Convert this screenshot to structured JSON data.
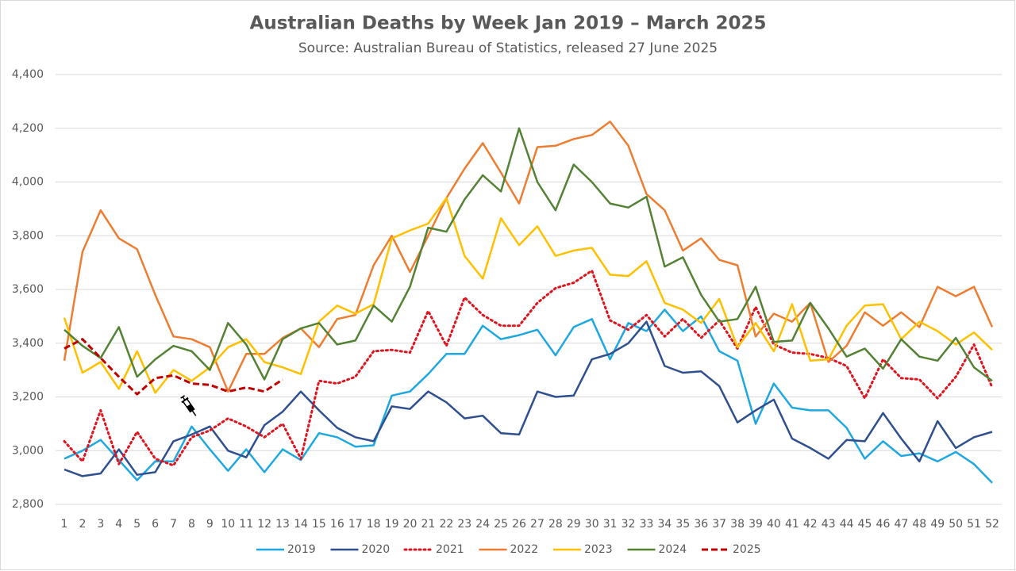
{
  "chart_data": {
    "type": "line",
    "title": "Australian Deaths by Week Jan 2019 – March 2025",
    "subtitle": "Source: Australian Bureau of Statistics, released 27 June 2025",
    "categories": [
      1,
      2,
      3,
      4,
      5,
      6,
      7,
      8,
      9,
      10,
      11,
      12,
      13,
      14,
      15,
      16,
      17,
      18,
      19,
      20,
      21,
      22,
      23,
      24,
      25,
      26,
      27,
      28,
      29,
      30,
      31,
      32,
      33,
      34,
      35,
      36,
      37,
      38,
      39,
      40,
      41,
      42,
      43,
      44,
      45,
      46,
      47,
      48,
      49,
      50,
      51,
      52
    ],
    "ylim": [
      2800,
      4400
    ],
    "yticks": [
      {
        "value": 2800,
        "label": "2,800"
      },
      {
        "value": 3000,
        "label": "3,000"
      },
      {
        "value": 3200,
        "label": "3,200"
      },
      {
        "value": 3400,
        "label": "3,400"
      },
      {
        "value": 3600,
        "label": "3,600"
      },
      {
        "value": 3800,
        "label": "3,800"
      },
      {
        "value": 4000,
        "label": "4,000"
      },
      {
        "value": 4200,
        "label": "4,200"
      },
      {
        "value": 4400,
        "label": "4,400"
      }
    ],
    "grid": true,
    "legend": "bottom",
    "series": [
      {
        "name": "2019",
        "color": "#1fa8e0",
        "style": "solid",
        "values": [
          2970,
          3000,
          3040,
          2965,
          2890,
          2960,
          2960,
          3090,
          3005,
          2925,
          3005,
          2920,
          3005,
          2965,
          3065,
          3050,
          3015,
          3020,
          3205,
          3220,
          3285,
          3360,
          3360,
          3465,
          3415,
          3430,
          3450,
          3355,
          3460,
          3490,
          3340,
          3475,
          3445,
          3525,
          3445,
          3500,
          3370,
          3335,
          3100,
          3250,
          3160,
          3150,
          3150,
          3085,
          2970,
          3035,
          2980,
          2990,
          2960,
          2995,
          2950,
          2880
        ]
      },
      {
        "name": "2020",
        "color": "#2f4f8f",
        "style": "solid",
        "values": [
          2930,
          2905,
          2915,
          3005,
          2910,
          2920,
          3035,
          3060,
          3090,
          3000,
          2975,
          3095,
          3145,
          3220,
          3150,
          3085,
          3050,
          3035,
          3165,
          3155,
          3220,
          3180,
          3120,
          3130,
          3065,
          3060,
          3220,
          3200,
          3205,
          3340,
          3360,
          3400,
          3480,
          3315,
          3290,
          3295,
          3240,
          3105,
          3150,
          3190,
          3045,
          3010,
          2970,
          3040,
          3035,
          3140,
          3045,
          2960,
          3110,
          3010,
          3050,
          3070
        ]
      },
      {
        "name": "2021",
        "color": "#e0141e",
        "style": "dotted",
        "values": [
          3035,
          2960,
          3150,
          2950,
          3070,
          2970,
          2945,
          3050,
          3075,
          3120,
          3090,
          3050,
          3100,
          2970,
          3260,
          3250,
          3275,
          3370,
          3375,
          3365,
          3520,
          3390,
          3570,
          3505,
          3465,
          3465,
          3550,
          3605,
          3625,
          3670,
          3485,
          3450,
          3505,
          3425,
          3490,
          3420,
          3485,
          3380,
          3535,
          3395,
          3365,
          3360,
          3345,
          3315,
          3195,
          3340,
          3270,
          3265,
          3195,
          3275,
          3395,
          3235
        ]
      },
      {
        "name": "2022",
        "color": "#ed7d31",
        "style": "solid",
        "values": [
          3335,
          3740,
          3895,
          3790,
          3750,
          3580,
          3425,
          3415,
          3385,
          3220,
          3360,
          3360,
          3420,
          3455,
          3385,
          3490,
          3505,
          3690,
          3800,
          3665,
          3800,
          3940,
          4050,
          4145,
          4035,
          3920,
          4130,
          4135,
          4160,
          4175,
          4225,
          4135,
          3955,
          3895,
          3745,
          3790,
          3710,
          3690,
          3425,
          3510,
          3480,
          3550,
          3330,
          3390,
          3515,
          3465,
          3515,
          3460,
          3610,
          3575,
          3610,
          3460
        ]
      },
      {
        "name": "2023",
        "color": "#ffc000",
        "style": "solid",
        "values": [
          3495,
          3290,
          3330,
          3230,
          3370,
          3215,
          3300,
          3260,
          3310,
          3385,
          3415,
          3330,
          3310,
          3285,
          3480,
          3540,
          3510,
          3545,
          3790,
          3820,
          3845,
          3940,
          3725,
          3640,
          3865,
          3765,
          3835,
          3725,
          3745,
          3755,
          3655,
          3650,
          3705,
          3550,
          3525,
          3475,
          3565,
          3385,
          3475,
          3370,
          3545,
          3335,
          3340,
          3465,
          3540,
          3545,
          3415,
          3480,
          3445,
          3395,
          3440,
          3375
        ]
      },
      {
        "name": "2024",
        "color": "#548235",
        "style": "solid",
        "values": [
          3450,
          3390,
          3345,
          3460,
          3275,
          3340,
          3390,
          3370,
          3300,
          3475,
          3395,
          3265,
          3415,
          3455,
          3475,
          3395,
          3410,
          3540,
          3480,
          3610,
          3830,
          3815,
          3935,
          4025,
          3965,
          4200,
          4000,
          3895,
          4065,
          4000,
          3920,
          3905,
          3945,
          3685,
          3720,
          3580,
          3480,
          3490,
          3610,
          3405,
          3410,
          3550,
          3455,
          3350,
          3380,
          3305,
          3415,
          3350,
          3335,
          3420,
          3310,
          3260
        ]
      },
      {
        "name": "2025",
        "color": "#c00000",
        "style": "dashed",
        "values": [
          3380,
          3415,
          3345,
          3275,
          3210,
          3270,
          3280,
          3250,
          3245,
          3220,
          3235,
          3220,
          3265,
          null,
          null,
          null,
          null,
          null,
          null,
          null,
          null,
          null,
          null,
          null,
          null,
          null,
          null,
          null,
          null,
          null,
          null,
          null,
          null,
          null,
          null,
          null,
          null,
          null,
          null,
          null,
          null,
          null,
          null,
          null,
          null,
          null,
          null,
          null,
          null,
          null,
          null,
          null
        ]
      }
    ]
  }
}
